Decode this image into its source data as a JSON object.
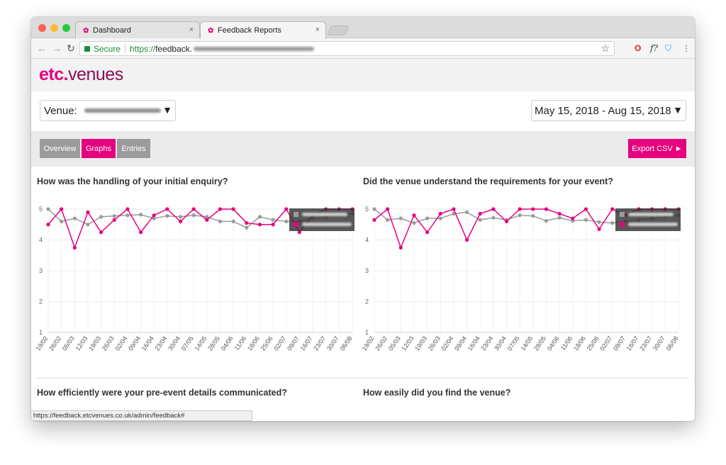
{
  "browser": {
    "tabs": [
      {
        "label": "Dashboard",
        "close": "×"
      },
      {
        "label": "Feedback Reports",
        "close": "×"
      }
    ],
    "omnibox": {
      "secure_label": "Secure",
      "url_scheme": "https://",
      "url_host": "feedback."
    },
    "status_url": "https://feedback.etcvenues.co.uk/admin/feedback#"
  },
  "brand": {
    "logo_part1": "etc.",
    "logo_part2": "venues",
    "primary_color": "#e6007e",
    "secondary_color": "#8c0d55"
  },
  "filters": {
    "venue_label": "Venue:",
    "date_range": "May 15, 2018 - Aug 15, 2018"
  },
  "view_tabs": [
    {
      "label": "Overview"
    },
    {
      "label": "Graphs"
    },
    {
      "label": "Entries"
    }
  ],
  "export_label": "Export CSV ►",
  "chart_data": [
    {
      "type": "line",
      "title": "How was the handling of your initial enquiry?",
      "x": [
        "19/02",
        "26/02",
        "05/03",
        "12/03",
        "19/03",
        "26/03",
        "02/04",
        "09/04",
        "16/04",
        "23/04",
        "30/04",
        "07/05",
        "14/05",
        "28/05",
        "04/06",
        "11/06",
        "18/06",
        "25/06",
        "02/07",
        "09/07",
        "16/07",
        "23/07",
        "30/07",
        "06/08"
      ],
      "ylim": [
        1,
        5
      ],
      "yticks": [
        1,
        2,
        3,
        4,
        5
      ],
      "series": [
        {
          "color": "#e6007e",
          "values": [
            4.5,
            5.0,
            3.75,
            4.9,
            4.25,
            4.65,
            5.0,
            4.25,
            4.8,
            5.0,
            4.6,
            5.0,
            4.65,
            5.0,
            5.0,
            4.55,
            4.5,
            4.5,
            5.0,
            4.25,
            4.8,
            5.0,
            5.0,
            5.0
          ]
        },
        {
          "color": "#9b9b9b",
          "values": [
            5.0,
            4.6,
            4.7,
            4.5,
            4.75,
            4.78,
            4.8,
            4.82,
            4.7,
            4.78,
            4.75,
            4.8,
            4.75,
            4.6,
            4.6,
            4.4,
            4.75,
            4.65,
            4.6,
            4.6,
            4.7,
            4.75,
            4.8,
            4.85
          ]
        }
      ]
    },
    {
      "type": "line",
      "title": "Did the venue understand the requirements for your event?",
      "x": [
        "19/02",
        "26/02",
        "05/03",
        "12/03",
        "19/03",
        "26/03",
        "02/04",
        "09/04",
        "16/04",
        "23/04",
        "30/04",
        "07/05",
        "14/05",
        "28/05",
        "04/06",
        "11/06",
        "18/06",
        "25/06",
        "02/07",
        "09/07",
        "16/07",
        "23/07",
        "30/07",
        "06/08"
      ],
      "ylim": [
        1,
        5
      ],
      "yticks": [
        1,
        2,
        3,
        4,
        5
      ],
      "series": [
        {
          "color": "#e6007e",
          "values": [
            4.65,
            5.0,
            3.75,
            4.8,
            4.25,
            4.85,
            5.0,
            4.0,
            4.85,
            5.0,
            4.6,
            5.0,
            5.0,
            5.0,
            4.85,
            4.7,
            5.0,
            4.35,
            5.0,
            4.8,
            5.0,
            5.0,
            5.0,
            5.0
          ]
        },
        {
          "color": "#9b9b9b",
          "values": [
            5.0,
            4.65,
            4.7,
            4.55,
            4.7,
            4.7,
            4.85,
            4.9,
            4.65,
            4.72,
            4.65,
            4.8,
            4.78,
            4.62,
            4.72,
            4.62,
            4.65,
            4.58,
            4.55,
            4.6,
            4.65,
            4.7,
            4.75,
            4.8
          ]
        }
      ]
    },
    {
      "type": "line",
      "title": "How efficiently were your pre-event details communicated?"
    },
    {
      "type": "line",
      "title": "How easily did you find the venue?"
    }
  ]
}
